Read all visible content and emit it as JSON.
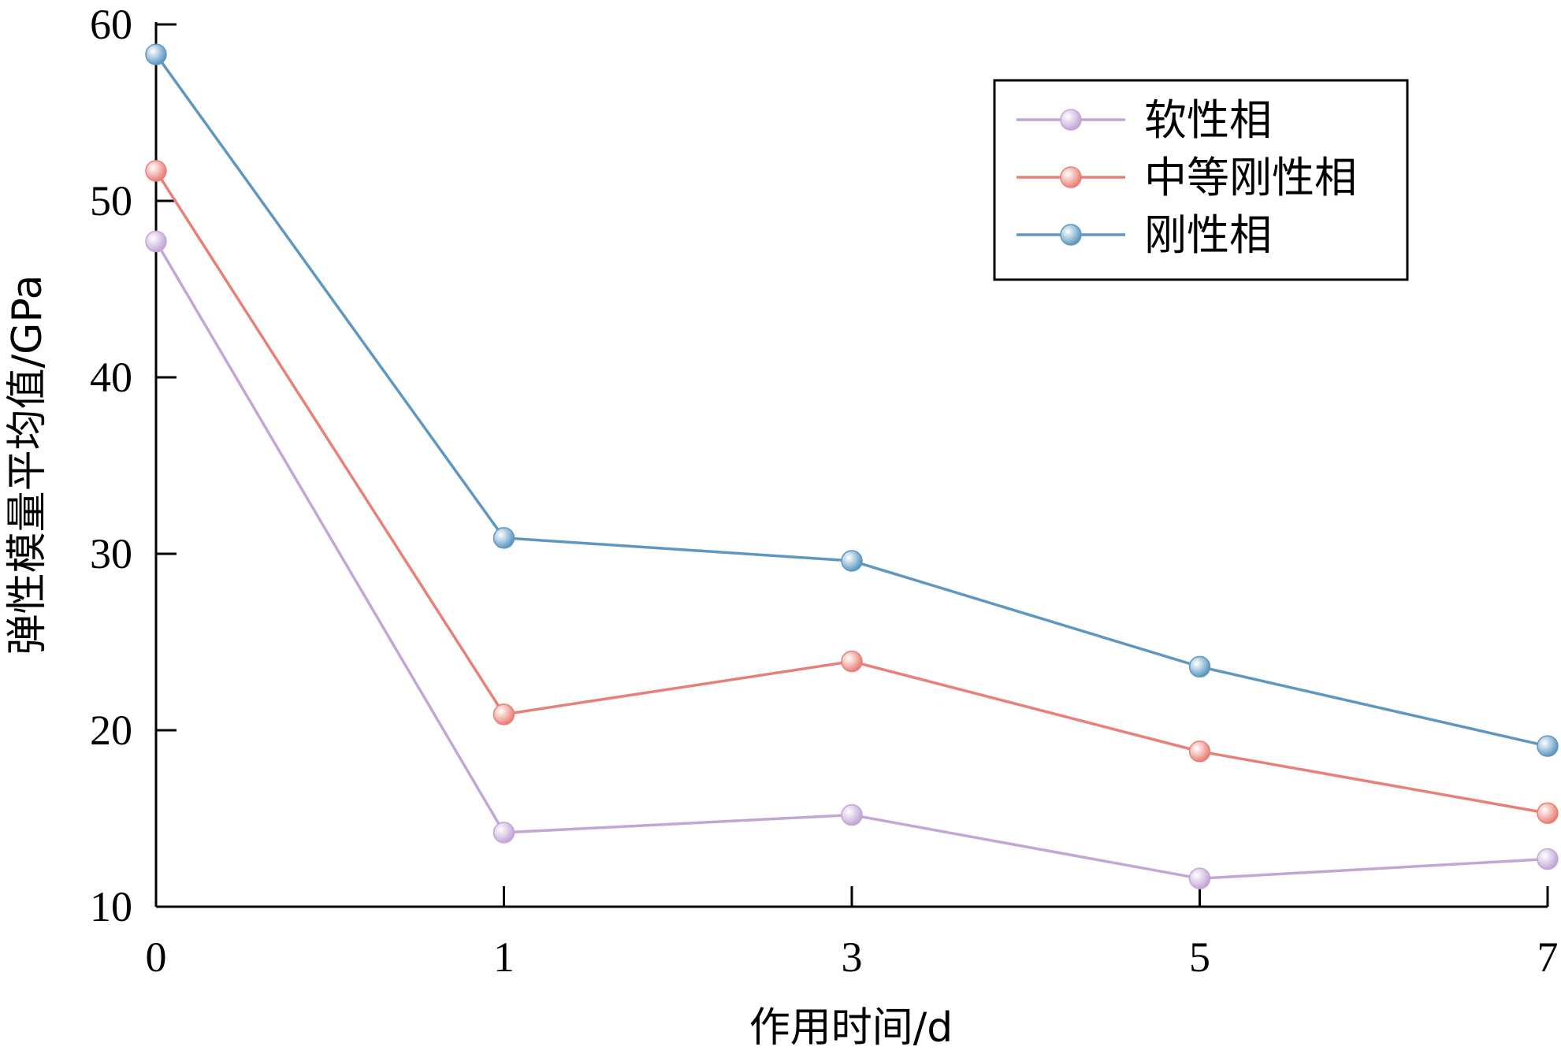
{
  "chart_data": {
    "type": "line",
    "xlabel": "作用时间/d",
    "ylabel": "弹性模量平均值/GPa",
    "categories": [
      "0",
      "1",
      "3",
      "5",
      "7"
    ],
    "ylim": [
      10,
      60
    ],
    "yticks": [
      10,
      20,
      30,
      40,
      50,
      60
    ],
    "grid": false,
    "legend_position": "top-right",
    "series": [
      {
        "name": "软性相",
        "color": "#c3a6d6",
        "values": [
          47.7,
          14.2,
          15.2,
          11.6,
          12.7
        ]
      },
      {
        "name": "中等刚性相",
        "color": "#e98077",
        "values": [
          51.7,
          20.9,
          23.9,
          18.8,
          15.3
        ]
      },
      {
        "name": "刚性相",
        "color": "#5e98c2",
        "values": [
          58.3,
          30.9,
          29.6,
          23.6,
          19.1
        ]
      }
    ]
  }
}
